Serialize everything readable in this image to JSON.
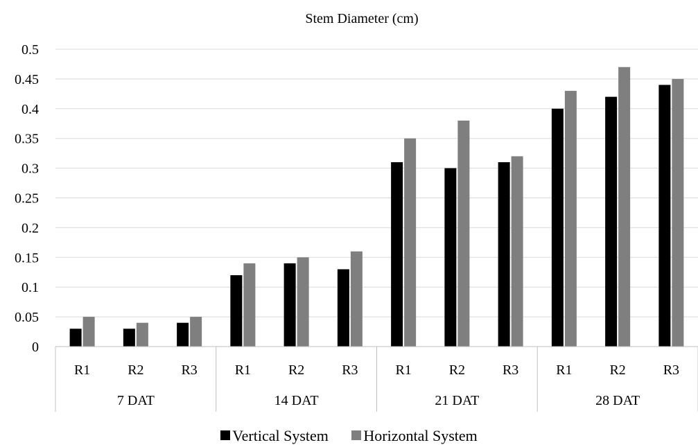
{
  "chart_data": {
    "type": "bar",
    "title": "Stem Diameter (cm)",
    "xlabel": "",
    "ylabel": "",
    "ylim": [
      0,
      0.5
    ],
    "yticks": [
      "0",
      "0.05",
      "0.1",
      "0.15",
      "0.2",
      "0.25",
      "0.3",
      "0.35",
      "0.4",
      "0.45",
      "0.5"
    ],
    "groups": [
      {
        "label": "7 DAT",
        "categories": [
          "R1",
          "R2",
          "R3"
        ]
      },
      {
        "label": "14 DAT",
        "categories": [
          "R1",
          "R2",
          "R3"
        ]
      },
      {
        "label": "21 DAT",
        "categories": [
          "R1",
          "R2",
          "R3"
        ]
      },
      {
        "label": "28 DAT",
        "categories": [
          "R1",
          "R2",
          "R3"
        ]
      }
    ],
    "series": [
      {
        "name": "Vertical System",
        "color": "#000000",
        "values": [
          0.03,
          0.03,
          0.04,
          0.12,
          0.14,
          0.13,
          0.31,
          0.3,
          0.31,
          0.4,
          0.42,
          0.44
        ]
      },
      {
        "name": "Horizontal System",
        "color": "#7f7f7f",
        "values": [
          0.05,
          0.04,
          0.05,
          0.14,
          0.15,
          0.16,
          0.35,
          0.38,
          0.32,
          0.43,
          0.47,
          0.45
        ]
      }
    ],
    "grid": true,
    "legend_position": "bottom"
  }
}
